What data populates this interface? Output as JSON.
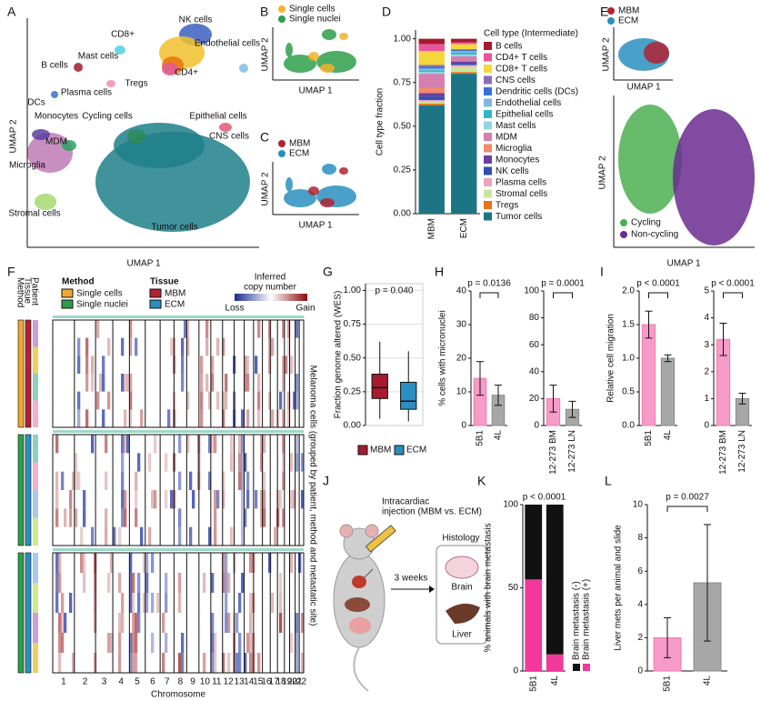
{
  "panels": {
    "letters": [
      "A",
      "B",
      "C",
      "D",
      "E",
      "F",
      "G",
      "H",
      "I",
      "J",
      "K",
      "L"
    ],
    "umap_a": {
      "labels": [
        "NK cells",
        "CD8+",
        "Mast cells",
        "Endothelial cells",
        "B cells",
        "Tregs",
        "CD4+",
        "Plasma cells",
        "DCs",
        "Monocytes",
        "Cycling cells",
        "Epithelial cells",
        "CNS cells",
        "MDM",
        "Microglia",
        "Tumor cells",
        "Stromal cells"
      ],
      "xlabel": "UMAP 1",
      "ylabel": "UMAP 2"
    },
    "umap_b": {
      "legend": [
        "Single cells",
        "Single nuclei"
      ],
      "xlabel": "UMAP 1",
      "ylabel": "UMAP 2"
    },
    "umap_c": {
      "legend": [
        "MBM",
        "ECM"
      ],
      "xlabel": "UMAP 1",
      "ylabel": "UMAP 2"
    },
    "umap_e": {
      "top_legend": [
        "MBM",
        "ECM"
      ],
      "top_xlabel": "UMAP 1",
      "top_ylabel": "UMAP 2",
      "legend": [
        "Cycling",
        "Non-cycling"
      ],
      "xlabel": "UMAP 1",
      "ylabel": "UMAP 2"
    },
    "heatmap_f": {
      "track_labels": [
        "Method",
        "Tissue",
        "Patient"
      ],
      "method_title": "Method",
      "method_items": [
        "Single cells",
        "Single nuclei"
      ],
      "tissue_title": "Tissue",
      "tissue_items": [
        "MBM",
        "ECM"
      ],
      "scale_title": [
        "Inferred",
        "copy number"
      ],
      "scale_low": "Loss",
      "scale_high": "Gain",
      "side_label": "Melanoma cells (grouped by patient, method and metastatic site)",
      "xlabel": "Chromosome",
      "chromosomes": [
        "1",
        "2",
        "3",
        "4",
        "5",
        "6",
        "7",
        "8",
        "9",
        "10",
        "11",
        "12",
        "13",
        "14",
        "15",
        "16",
        "17",
        "18",
        "19",
        "20",
        "21",
        "22"
      ]
    },
    "schematic_j": {
      "injection": [
        "Intracardiac",
        "injection (MBM vs. ECM)"
      ],
      "duration": "3 weeks",
      "histology": "Histology",
      "brain": "Brain",
      "liver": "Liver"
    }
  },
  "chart_data": [
    {
      "type": "stacked_bar",
      "ylabel": "Cell type fraction",
      "legend_title": "Cell type (Intermediate)",
      "categories": [
        "MBM",
        "ECM"
      ],
      "ylim": [
        0,
        1.05
      ],
      "yticks": [
        {
          "value": 0,
          "label": "0.00"
        },
        {
          "value": 0.25,
          "label": "0.25"
        },
        {
          "value": 0.5,
          "label": "0.50"
        },
        {
          "value": 0.75,
          "label": "0.75"
        },
        {
          "value": 1,
          "label": "1.00"
        }
      ],
      "series": [
        {
          "name": "B cells",
          "color": "#a6192e",
          "values": [
            0.03,
            0.02
          ]
        },
        {
          "name": "CD4+ T cells",
          "color": "#e8559a",
          "values": [
            0.04,
            0.01
          ]
        },
        {
          "name": "CD8+ T cells",
          "color": "#f5d63d",
          "values": [
            0.08,
            0.03
          ]
        },
        {
          "name": "CNS cells",
          "color": "#8e6bb8",
          "values": [
            0.01,
            0
          ]
        },
        {
          "name": "Dendritic cells (DCs)",
          "color": "#3a6fd8",
          "values": [
            0.01,
            0.01
          ]
        },
        {
          "name": "Endothelial cells",
          "color": "#7fb6e0",
          "values": [
            0.01,
            0.01
          ]
        },
        {
          "name": "Epithelial cells",
          "color": "#30b8c8",
          "values": [
            0.01,
            0.01
          ]
        },
        {
          "name": "Mast cells",
          "color": "#90d6e0",
          "values": [
            0.01,
            0.01
          ]
        },
        {
          "name": "MDM",
          "color": "#d47fb0",
          "values": [
            0.08,
            0.03
          ]
        },
        {
          "name": "Microglia",
          "color": "#f08a6a",
          "values": [
            0.03,
            0
          ]
        },
        {
          "name": "Monocytes",
          "color": "#6a3fa0",
          "values": [
            0.02,
            0.01
          ]
        },
        {
          "name": "NK cells",
          "color": "#3050b0",
          "values": [
            0.02,
            0.01
          ]
        },
        {
          "name": "Plasma cells",
          "color": "#f2a0c0",
          "values": [
            0.01,
            0.01
          ]
        },
        {
          "name": "Stromal cells",
          "color": "#c8e6a0",
          "values": [
            0.01,
            0.03
          ]
        },
        {
          "name": "Tregs",
          "color": "#e8731a",
          "values": [
            0.01,
            0.01
          ]
        },
        {
          "name": "Tumor cells",
          "color": "#1c7585",
          "values": [
            0.62,
            0.8
          ]
        }
      ]
    },
    {
      "type": "box",
      "ylabel": "Fraction genome altered (WES)",
      "annotation": "p = 0.040",
      "grid": true,
      "ylim": [
        0,
        1.05
      ],
      "yticks": [
        {
          "value": 0,
          "label": "0.00"
        },
        {
          "value": 0.25,
          "label": "0.25"
        },
        {
          "value": 0.5,
          "label": "0.50"
        },
        {
          "value": 0.75,
          "label": "0.75"
        },
        {
          "value": 1,
          "label": "1.00"
        }
      ],
      "boxes": [
        {
          "name": "MBM",
          "color": "#a61c2e",
          "min": 0.05,
          "q1": 0.2,
          "median": 0.28,
          "q3": 0.38,
          "max": 0.62
        },
        {
          "name": "ECM",
          "color": "#2a8fc0",
          "min": 0.03,
          "q1": 0.12,
          "median": 0.18,
          "q3": 0.32,
          "max": 0.55
        }
      ]
    },
    {
      "type": "bar",
      "ylabel": "% cells with micronuclei",
      "annotation": "p = 0.0136",
      "categories": [
        "5B1",
        "4L"
      ],
      "values": [
        14,
        9
      ],
      "errors": [
        5,
        3
      ],
      "colors": [
        "#f47ab5",
        "#8a8a8a"
      ],
      "ylim": [
        0,
        40
      ],
      "yticks": [
        0,
        10,
        20,
        30,
        40
      ]
    },
    {
      "type": "bar",
      "annotation": "p = 0.0001",
      "categories": [
        "12-273 BM",
        "12-273 LN"
      ],
      "values": [
        20,
        12
      ],
      "errors": [
        10,
        6
      ],
      "colors": [
        "#f47ab5",
        "#8a8a8a"
      ],
      "ylim": [
        0,
        100
      ],
      "yticks": [
        0,
        20,
        40,
        60,
        80,
        100
      ]
    },
    {
      "type": "bar",
      "ylabel": "Relative cell migration",
      "annotation": "p < 0.0001",
      "categories": [
        "5B1",
        "4L"
      ],
      "values": [
        1.5,
        1.0
      ],
      "errors": [
        0.2,
        0.05
      ],
      "colors": [
        "#f47ab5",
        "#8a8a8a"
      ],
      "ylim": [
        0,
        2
      ],
      "yticks": [
        {
          "value": 0,
          "label": "0.0"
        },
        {
          "value": 0.5,
          "label": "0.5"
        },
        {
          "value": 1,
          "label": "1.0"
        },
        {
          "value": 1.5,
          "label": "1.5"
        },
        {
          "value": 2,
          "label": "2.0"
        }
      ]
    },
    {
      "type": "bar",
      "annotation": "p < 0.0001",
      "categories": [
        "12-273 BM",
        "12-273 LN"
      ],
      "values": [
        3.2,
        1.0
      ],
      "errors": [
        0.6,
        0.2
      ],
      "colors": [
        "#f47ab5",
        "#8a8a8a"
      ],
      "ylim": [
        0,
        5
      ],
      "yticks": [
        0,
        1,
        2,
        3,
        4,
        5
      ]
    },
    {
      "type": "stacked_bar",
      "ylabel": "% animals with brain metastasis",
      "annotation": "p < 0.0001",
      "categories": [
        "5B1",
        "4L"
      ],
      "ylim": [
        0,
        100
      ],
      "yticks": [
        0,
        50,
        100
      ],
      "series": [
        {
          "name": "Brain metastasis (-)",
          "color": "#111111",
          "values": [
            45,
            90
          ]
        },
        {
          "name": "Brain metastasis (+)",
          "color": "#f2399b",
          "values": [
            55,
            10
          ]
        }
      ]
    },
    {
      "type": "bar",
      "ylabel": "Liver mets per animal and slide",
      "annotation": "p = 0.0027",
      "categories": [
        "5B1",
        "4L"
      ],
      "values": [
        2,
        5.3
      ],
      "errors": [
        1.2,
        3.5
      ],
      "colors": [
        "#f47ab5",
        "#8a8a8a"
      ],
      "ylim": [
        0,
        10
      ],
      "yticks": [
        0,
        2,
        4,
        6,
        8,
        10
      ]
    }
  ]
}
